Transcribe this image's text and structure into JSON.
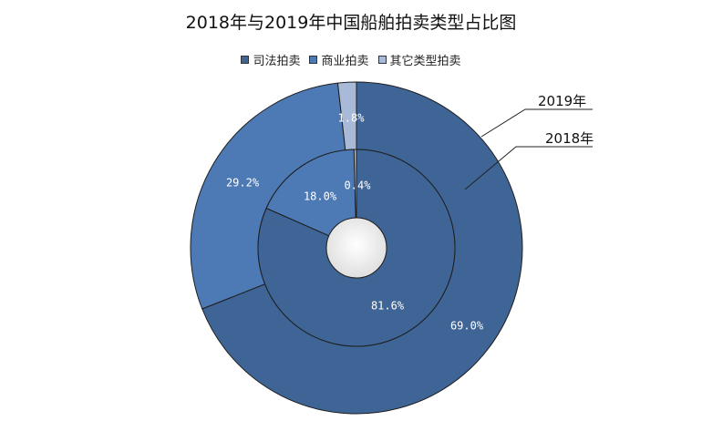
{
  "chart_data": {
    "type": "pie",
    "subtype": "doughnut",
    "title": "2018年与2019年中国船舶拍卖类型占比图",
    "categories": [
      "司法拍卖",
      "商业拍卖",
      "其它类型拍卖"
    ],
    "colors": [
      "#3f6596",
      "#4d7ab5",
      "#a9b9d8"
    ],
    "legend_position": "top",
    "series": [
      {
        "name": "2019年",
        "ring": "outer",
        "values": [
          69.0,
          29.2,
          1.8
        ],
        "labels": [
          "69.0%",
          "29.2%",
          "1.8%"
        ]
      },
      {
        "name": "2018年",
        "ring": "inner",
        "values": [
          81.6,
          18.0,
          0.4
        ],
        "labels": [
          "81.6%",
          "18.0%",
          "0.4%"
        ]
      }
    ]
  }
}
